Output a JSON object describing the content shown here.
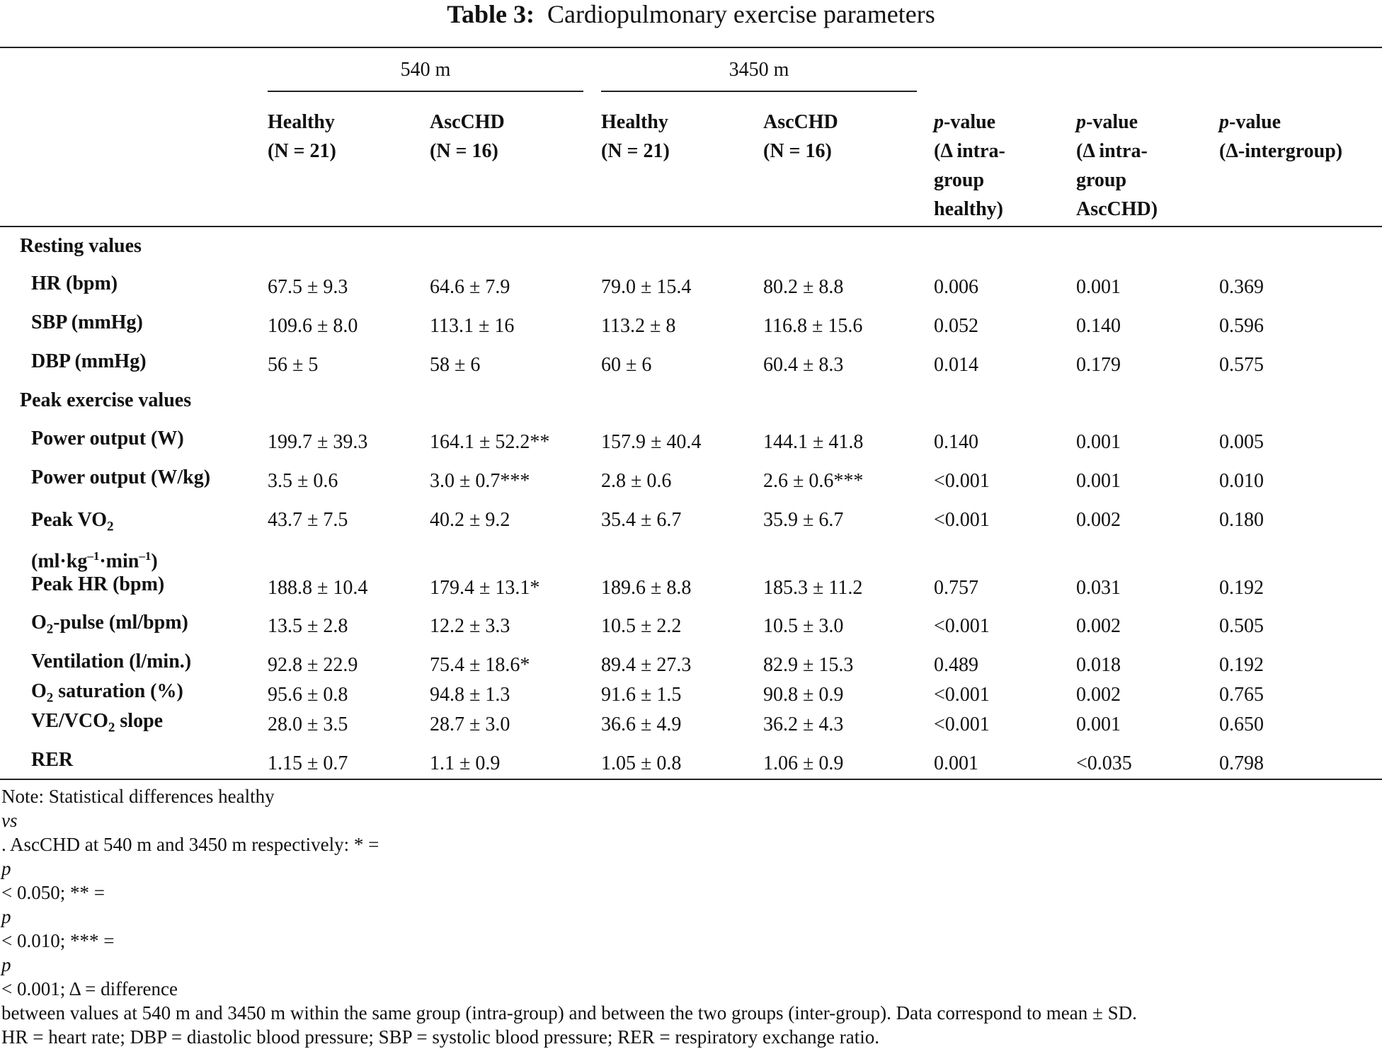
{
  "title": {
    "label": "Table 3:",
    "text": "Cardiopulmonary exercise parameters"
  },
  "groups": {
    "g540": "540 m",
    "g3450": "3450 m"
  },
  "headers": {
    "h1": "Healthy\n(N = 21)",
    "h2": "AscCHD\n(N = 16)",
    "h3": "Healthy\n(N = 21)",
    "h4": "AscCHD\n(N = 16)",
    "p1_italic": "p",
    "p1_rest": "-value\n(Δ intra-\ngroup\nhealthy)",
    "p2_italic": "p",
    "p2_rest": "-value\n(Δ intra-\ngroup\nAscCHD)",
    "p3_italic": "p",
    "p3_rest": "-value\n(Δ-intergroup)"
  },
  "sections": {
    "resting": "Resting values",
    "peak": "Peak exercise values"
  },
  "rows": {
    "hr": {
      "label": "HR (bpm)",
      "v": [
        "67.5 ± 9.3",
        "64.6 ± 7.9",
        "79.0 ± 15.4",
        "80.2 ± 8.8",
        "0.006",
        "0.001",
        "0.369"
      ]
    },
    "sbp": {
      "label": "SBP (mmHg)",
      "v": [
        "109.6 ± 8.0",
        "113.1 ± 16",
        "113.2 ± 8",
        "116.8 ± 15.6",
        "0.052",
        "0.140",
        "0.596"
      ]
    },
    "dbp": {
      "label": "DBP (mmHg)",
      "v": [
        "56 ± 5",
        "58 ± 6",
        "60 ± 6",
        "60.4 ± 8.3",
        "0.014",
        "0.179",
        "0.575"
      ]
    },
    "pw": {
      "label": "Power output (W)",
      "v": [
        "199.7 ± 39.3",
        "164.1 ± 52.2**",
        "157.9 ± 40.4",
        "144.1 ± 41.8",
        "0.140",
        "0.001",
        "0.005"
      ]
    },
    "pwkg": {
      "label": "Power output (W/kg)",
      "v": [
        "3.5 ± 0.6",
        "3.0 ± 0.7***",
        "2.8 ± 0.6",
        "2.6 ± 0.6***",
        "<0.001",
        "0.001",
        "0.010"
      ]
    },
    "vo2": {
      "label_a": "Peak VO",
      "label_sub": "2",
      "label_b": "(ml·kg",
      "sup1": "–1",
      "label_c": "·min",
      "sup2": "–1",
      "label_d": ")",
      "v": [
        "43.7 ± 7.5",
        "40.2 ± 9.2",
        "35.4 ± 6.7",
        "35.9 ± 6.7",
        "<0.001",
        "0.002",
        "0.180"
      ]
    },
    "phr": {
      "label": "Peak HR (bpm)",
      "v": [
        "188.8 ± 10.4",
        "179.4 ± 13.1*",
        "189.6 ± 8.8",
        "185.3 ± 11.2",
        "0.757",
        "0.031",
        "0.192"
      ]
    },
    "o2p": {
      "label_a": "O",
      "label_sub": "2",
      "label_b": "-pulse (ml/bpm)",
      "v": [
        "13.5 ± 2.8",
        "12.2 ± 3.3",
        "10.5 ± 2.2",
        "10.5 ± 3.0",
        "<0.001",
        "0.002",
        "0.505"
      ]
    },
    "vent": {
      "label": "Ventilation (l/min.)",
      "v": [
        "92.8 ± 22.9",
        "75.4 ± 18.6*",
        "89.4 ± 27.3",
        "82.9 ± 15.3",
        "0.489",
        "0.018",
        "0.192"
      ]
    },
    "o2s": {
      "label_a": "O",
      "label_sub": "2",
      "label_b": " saturation (%)",
      "v": [
        "95.6 ± 0.8",
        "94.8 ± 1.3",
        "91.6 ± 1.5",
        "90.8 ± 0.9",
        "<0.001",
        "0.002",
        "0.765"
      ]
    },
    "vevco2": {
      "label_a": "VE/VCO",
      "label_sub": "2",
      "label_b": " slope",
      "v": [
        "28.0 ± 3.5",
        "28.7 ± 3.0",
        "36.6 ± 4.9",
        "36.2 ± 4.3",
        "<0.001",
        "0.001",
        "0.650"
      ]
    },
    "rer": {
      "label": "RER",
      "v": [
        "1.15 ± 0.7",
        "1.1 ± 0.9",
        "1.05 ± 0.8",
        "1.06 ± 0.9",
        "0.001",
        "<0.035",
        "0.798"
      ]
    }
  },
  "note": {
    "l1a": "Note: Statistical differences healthy ",
    "l1vs": "vs",
    "l1b": ". AscCHD at 540 m and 3450 m respectively: * = ",
    "p": "p",
    "l1c": " < 0.050; ** = ",
    "l1d": " < 0.010; *** = ",
    "l1e": " < 0.001; Δ = difference",
    "l2": "between values at 540 m and 3450 m within the same group (intra-group) and between the two groups (inter-group). Data correspond to mean ± SD.",
    "l3": "HR = heart rate; DBP = diastolic blood pressure; SBP = systolic blood pressure; RER = respiratory exchange ratio."
  }
}
